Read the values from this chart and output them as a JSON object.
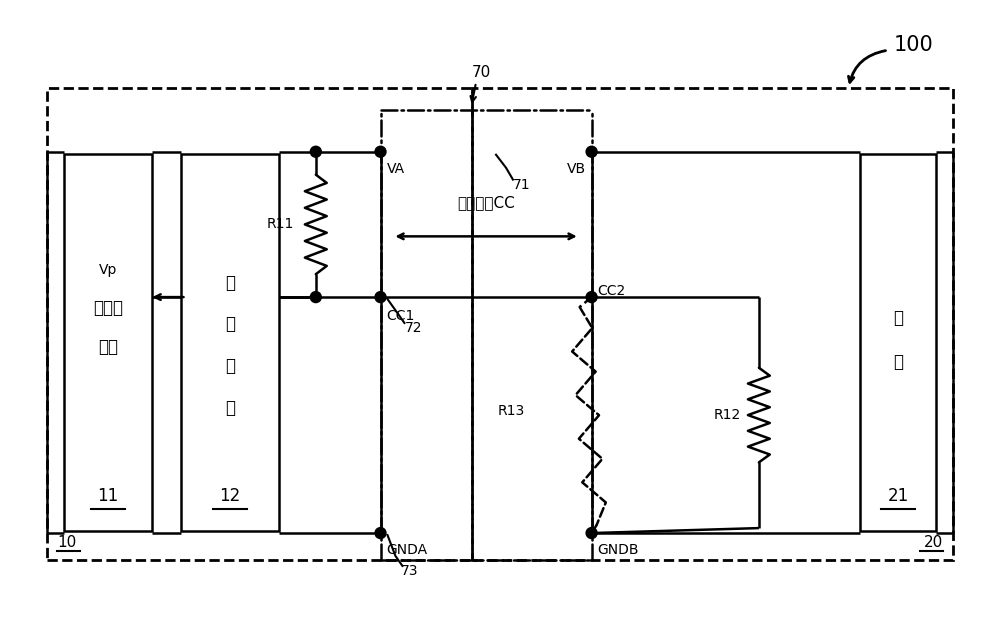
{
  "bg_color": "#ffffff",
  "line_color": "#000000",
  "fig_label": "100",
  "box10_label": "10",
  "box20_label": "20",
  "box70_label": "70",
  "label_VA": "VA",
  "label_VB": "VB",
  "label_CC1": "CC1",
  "label_CC2": "CC2",
  "label_GNDA": "GNDA",
  "label_GNDB": "GNDB",
  "label_R11": "R11",
  "label_R12": "R12",
  "label_R13": "R13",
  "label_Vp": "Vp",
  "label_71": "71",
  "label_72": "72",
  "label_73": "73",
  "label_cc_text": "传输讯号CC",
  "text_11_line1": "电源转",
  "text_11_line2": "换器",
  "text_11_num": "11",
  "text_12_line1": "控",
  "text_12_line2": "制",
  "text_12_line3": "电",
  "text_12_line4": "路",
  "text_12_num": "12",
  "text_21_line1": "负",
  "text_21_line2": "载",
  "text_21_num": "21",
  "font_size_labels": 10,
  "font_size_box": 12,
  "font_size_numbers": 10,
  "font_size_fig_label": 13
}
